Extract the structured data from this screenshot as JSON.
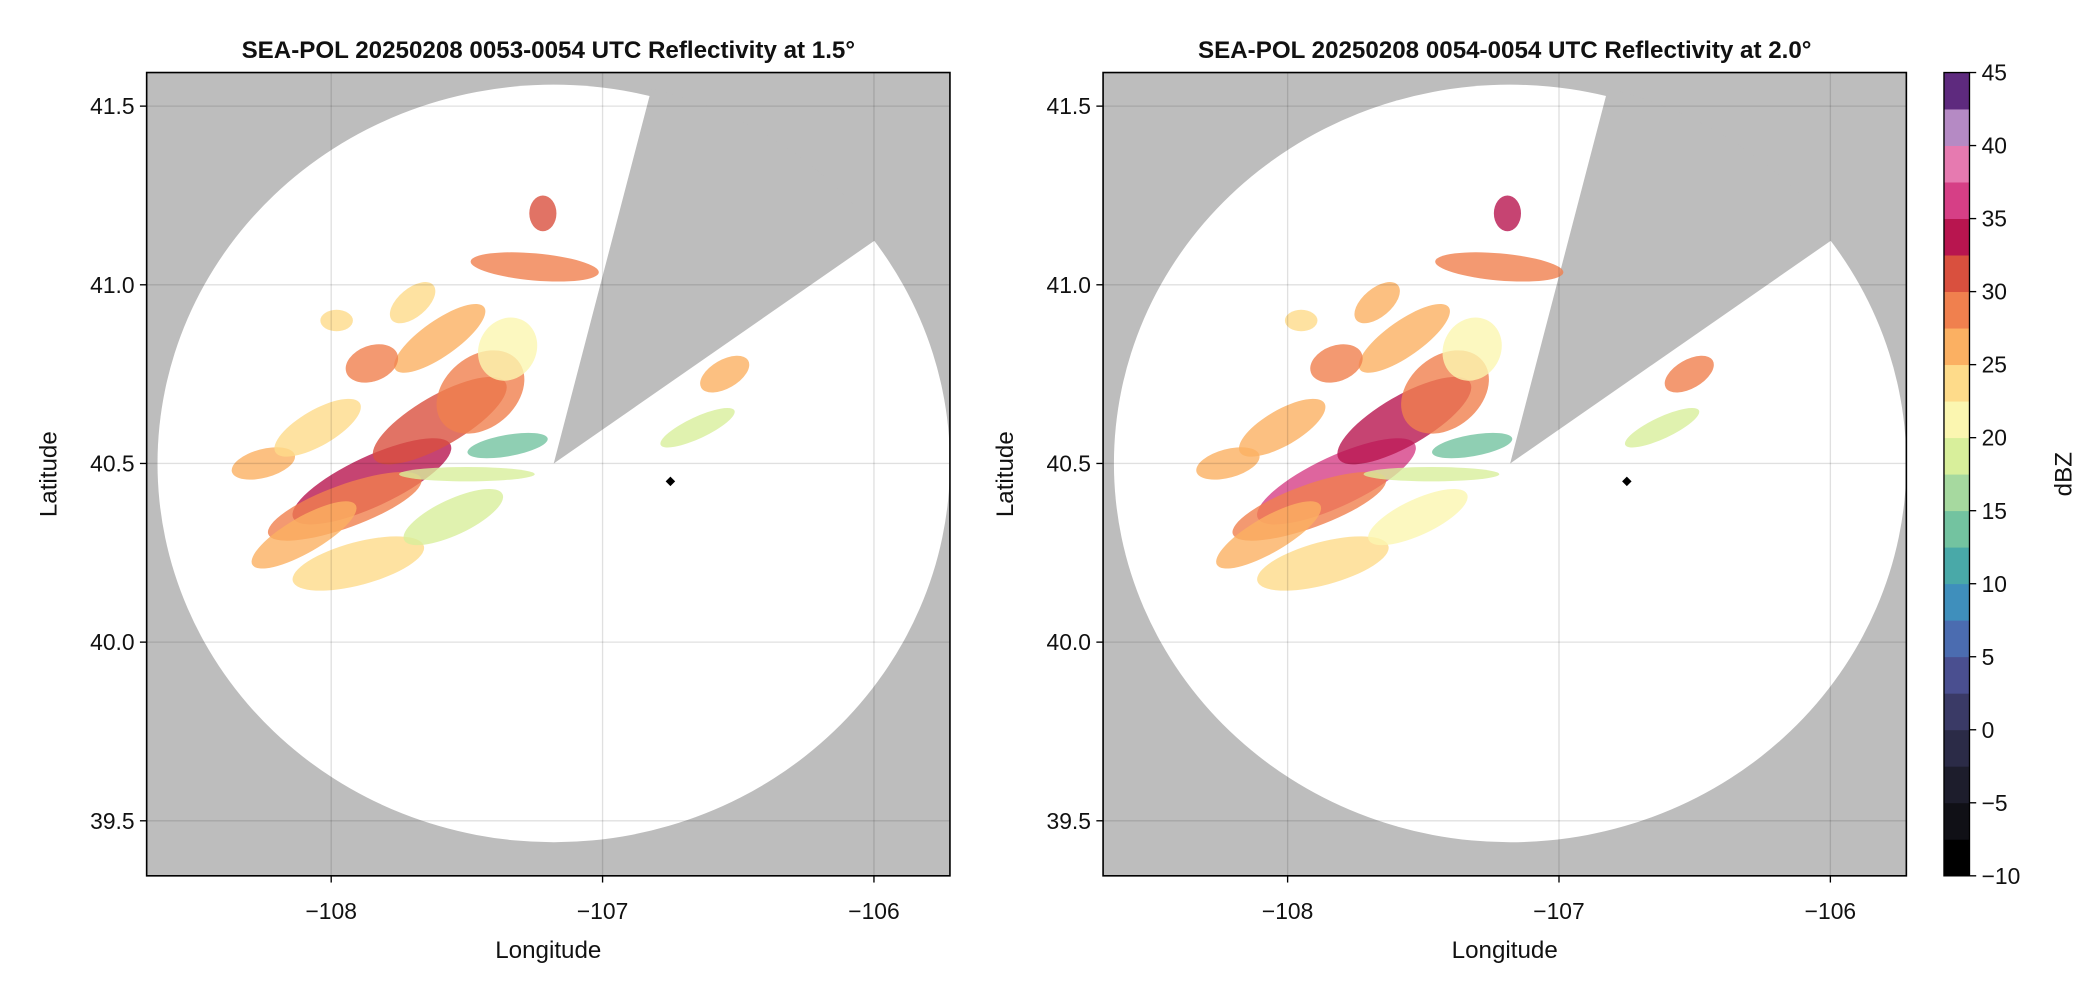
{
  "chart_data": [
    {
      "type": "radar-ppi",
      "title": "SEA-POL 20250208 0053-0054 UTC Reflectivity at 1.5°",
      "x_label": "Longitude",
      "y_label": "Latitude",
      "xlim": [
        -108.68,
        -105.72
      ],
      "ylim": [
        39.346,
        41.594
      ],
      "xticks": [
        {
          "value": -108,
          "label": "−108"
        },
        {
          "value": -107,
          "label": "−107"
        },
        {
          "value": -106,
          "label": "−106"
        }
      ],
      "yticks": [
        39.5,
        {
          "value": 40,
          "label": "40.0"
        },
        40.5,
        {
          "value": 41,
          "label": "41.0"
        },
        41.5
      ],
      "grid": true,
      "center": [
        -107.18,
        40.5
      ],
      "radius_lon": 1.46,
      "radius_lat": 1.06,
      "blocked_sector": [
        14,
        54
      ],
      "marker": [
        -106.75,
        40.45
      ]
    },
    {
      "type": "radar-ppi",
      "title": "SEA-POL 20250208 0054-0054 UTC Reflectivity at 2.0°",
      "x_label": "Longitude",
      "y_label": "Latitude",
      "xlim": [
        -108.68,
        -105.72
      ],
      "ylim": [
        39.346,
        41.594
      ],
      "xticks": [
        {
          "value": -108,
          "label": "−108"
        },
        {
          "value": -107,
          "label": "−107"
        },
        {
          "value": -106,
          "label": "−106"
        }
      ],
      "yticks": [
        39.5,
        {
          "value": 40,
          "label": "40.0"
        },
        40.5,
        {
          "value": 41,
          "label": "41.0"
        },
        41.5
      ],
      "grid": true,
      "center": [
        -107.18,
        40.5
      ],
      "radius_lon": 1.46,
      "radius_lat": 1.06,
      "blocked_sector": [
        14,
        54
      ],
      "marker": [
        -106.75,
        40.45
      ],
      "colorbar": {
        "label": "dBZ",
        "lim": [
          -10,
          45
        ],
        "ticks": [
          {
            "value": -10,
            "label": "−10"
          },
          {
            "value": -5,
            "label": "−5"
          },
          0,
          5,
          10,
          15,
          20,
          25,
          30,
          35,
          40,
          45
        ],
        "colors": [
          "#000000",
          "#101016",
          "#1d1d2c",
          "#2b2b47",
          "#3a3a66",
          "#4a4f90",
          "#4b6cb0",
          "#3f8fbc",
          "#49a9a8",
          "#73c3a0",
          "#a6d99f",
          "#d8ef9b",
          "#fbf6b0",
          "#fedb8a",
          "#fbb062",
          "#f0804e",
          "#d9503e",
          "#b8154f",
          "#d63f86",
          "#e67ab0",
          "#b58ac4",
          "#5e2a7e"
        ]
      }
    }
  ]
}
